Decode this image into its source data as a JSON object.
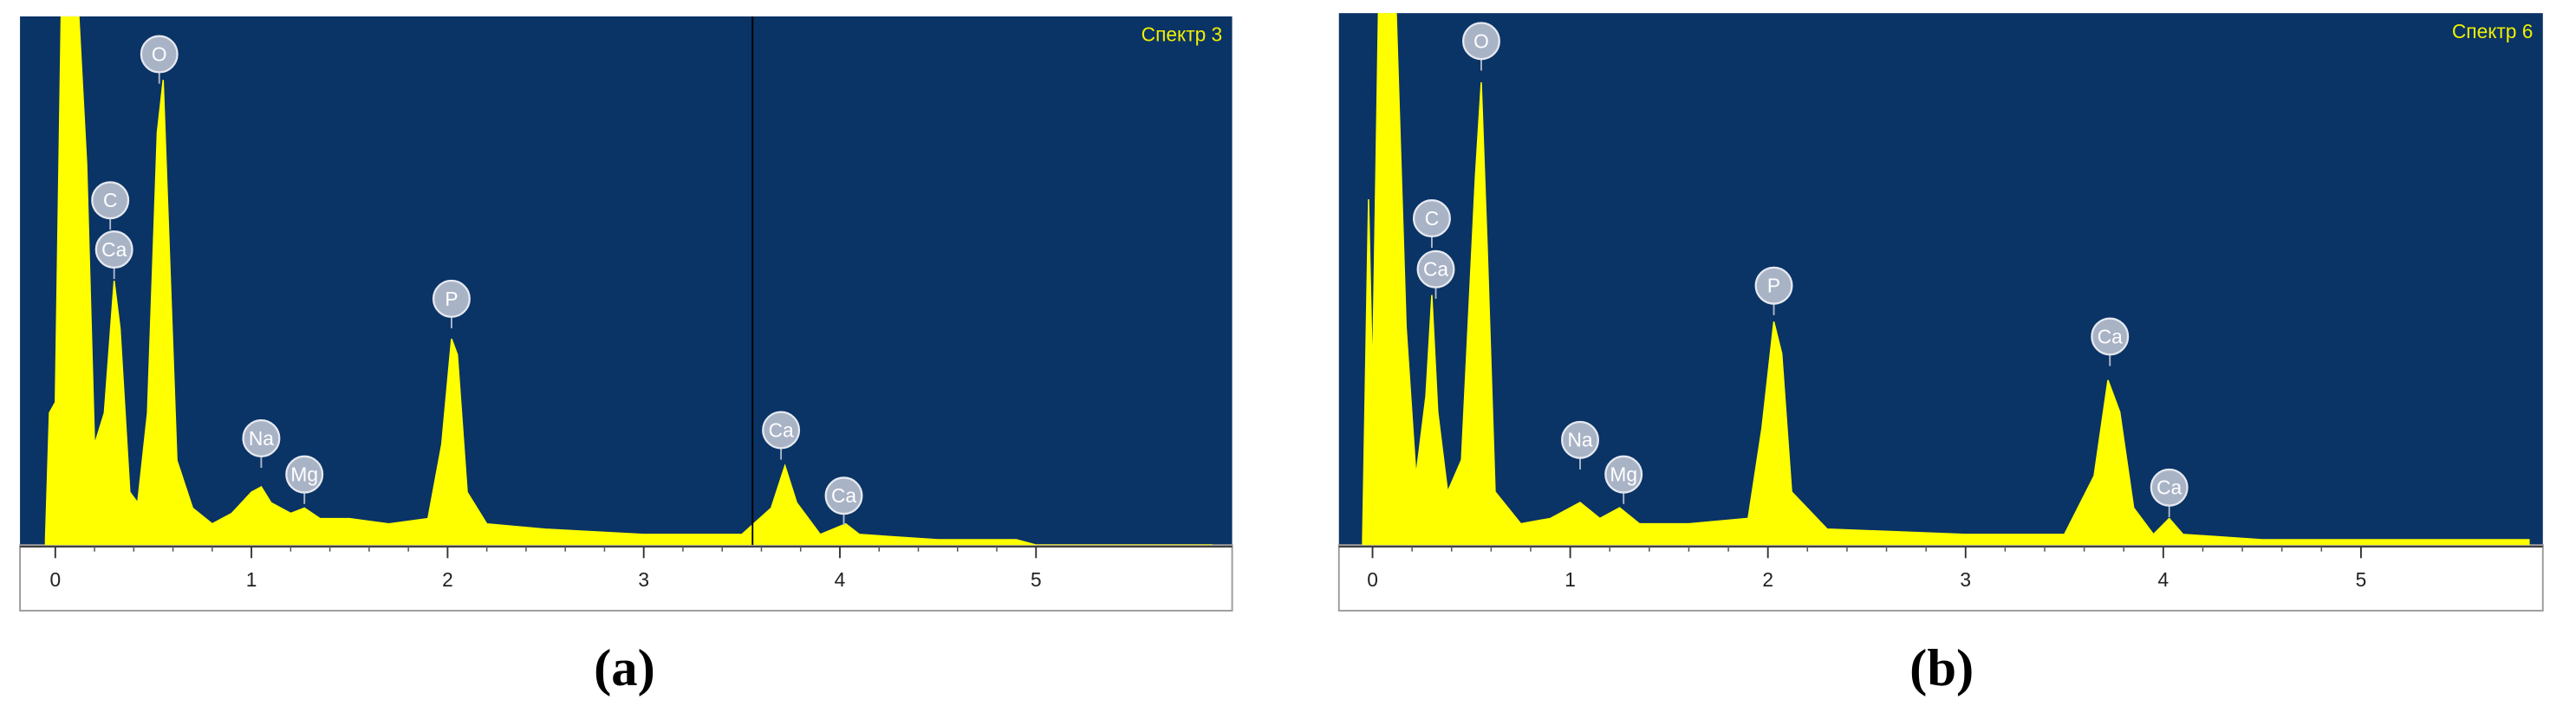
{
  "chart_data": [
    {
      "type": "area",
      "title": "Спектр 3",
      "caption": "(a)",
      "color": "#ffff00",
      "background": "#0a3366",
      "x": [
        -0.05,
        -0.03,
        0.0,
        0.03,
        0.08,
        0.12,
        0.16,
        0.2,
        0.25,
        0.3,
        0.33,
        0.38,
        0.42,
        0.47,
        0.52,
        0.55,
        0.58,
        0.62,
        0.7,
        0.8,
        0.9,
        1.0,
        1.05,
        1.1,
        1.2,
        1.27,
        1.35,
        1.5,
        1.7,
        1.9,
        1.97,
        2.02,
        2.05,
        2.1,
        2.2,
        2.5,
        3.0,
        3.5,
        3.65,
        3.72,
        3.78,
        3.9,
        4.03,
        4.1,
        4.5,
        4.9,
        5.0,
        5.9
      ],
      "values": [
        1,
        25,
        27,
        100,
        100,
        100,
        72,
        19,
        25,
        50,
        41,
        10,
        8,
        25,
        78,
        88,
        57,
        16,
        7,
        4,
        6,
        10,
        11,
        8,
        6,
        7,
        5,
        5,
        4,
        5,
        19,
        39,
        36,
        10,
        4,
        3,
        2,
        2,
        7,
        15,
        8,
        2,
        4,
        2,
        1,
        1,
        0,
        0
      ],
      "peak_labels": [
        "C",
        "Ca",
        "O",
        "Na",
        "Mg",
        "P",
        "Ca",
        "Ca"
      ],
      "xlim": [
        -0.18,
        6.0
      ],
      "xticks": [
        0,
        1,
        2,
        3,
        4,
        5
      ],
      "ylim": [
        0,
        100
      ]
    },
    {
      "type": "area",
      "title": "Спектр 6",
      "caption": "(b)",
      "color": "#ffff00",
      "background": "#0a3366",
      "x": [
        -0.05,
        -0.02,
        0.0,
        0.03,
        0.12,
        0.17,
        0.22,
        0.27,
        0.3,
        0.33,
        0.38,
        0.45,
        0.52,
        0.55,
        0.58,
        0.62,
        0.75,
        0.9,
        1.05,
        1.15,
        1.25,
        1.35,
        1.6,
        1.9,
        1.97,
        2.03,
        2.07,
        2.12,
        2.3,
        3.0,
        3.5,
        3.65,
        3.72,
        3.78,
        3.85,
        3.95,
        4.03,
        4.1,
        4.5,
        5.0,
        5.5,
        5.85
      ],
      "values": [
        1,
        65,
        31,
        100,
        100,
        41,
        13,
        28,
        47,
        25,
        10,
        16,
        69,
        87,
        56,
        10,
        4,
        5,
        8,
        5,
        7,
        4,
        4,
        5,
        22,
        42,
        36,
        10,
        3,
        2,
        2,
        13,
        31,
        25,
        7,
        2,
        5,
        2,
        1,
        1,
        1,
        1
      ],
      "peak_labels": [
        "C",
        "Ca",
        "O",
        "Na",
        "Mg",
        "P",
        "Ca",
        "Ca"
      ],
      "xlim": [
        -0.17,
        5.92
      ],
      "xticks": [
        0,
        1,
        2,
        3,
        4,
        5
      ],
      "ylim": [
        0,
        100
      ]
    }
  ]
}
